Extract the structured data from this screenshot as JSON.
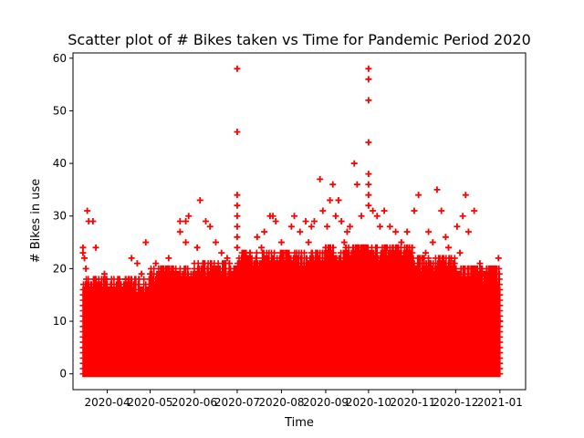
{
  "chart_data": {
    "type": "scatter",
    "title": "Scatter plot of # Bikes taken vs Time for Pandemic Period 2020",
    "xlabel": "Time",
    "ylabel": "# Bikes in use",
    "marker": "+",
    "marker_color": "#ff0000",
    "grid": false,
    "legend": "none",
    "xlim": [
      "2020-03-08",
      "2021-01-19"
    ],
    "ylim": [
      -3,
      61
    ],
    "x_ticks": [
      {
        "value": "2020-04-01",
        "label": "2020-04"
      },
      {
        "value": "2020-05-01",
        "label": "2020-05"
      },
      {
        "value": "2020-06-01",
        "label": "2020-06"
      },
      {
        "value": "2020-07-01",
        "label": "2020-07"
      },
      {
        "value": "2020-08-01",
        "label": "2020-08"
      },
      {
        "value": "2020-09-01",
        "label": "2020-09"
      },
      {
        "value": "2020-10-01",
        "label": "2020-10"
      },
      {
        "value": "2020-11-01",
        "label": "2020-11"
      },
      {
        "value": "2020-12-01",
        "label": "2020-12"
      },
      {
        "value": "2021-01-01",
        "label": "2021-01"
      }
    ],
    "y_ticks": [
      0,
      10,
      20,
      30,
      40,
      50,
      60
    ],
    "x_range": [
      "2020-03-15",
      "2021-01-01"
    ],
    "points": [
      [
        "2020-03-15",
        24
      ],
      [
        "2020-03-15",
        23
      ],
      [
        "2020-03-16",
        22
      ],
      [
        "2020-03-17",
        20
      ],
      [
        "2020-03-18",
        31
      ],
      [
        "2020-03-19",
        29
      ],
      [
        "2020-03-22",
        29
      ],
      [
        "2020-03-24",
        24
      ],
      [
        "2020-03-24",
        18
      ],
      [
        "2020-03-23",
        16
      ],
      [
        "2020-03-30",
        19
      ],
      [
        "2020-03-31",
        18
      ],
      [
        "2020-04-14",
        18
      ],
      [
        "2020-04-18",
        22
      ],
      [
        "2020-04-22",
        21
      ],
      [
        "2020-04-25",
        19
      ],
      [
        "2020-04-28",
        25
      ],
      [
        "2020-05-05",
        21
      ],
      [
        "2020-05-10",
        20
      ],
      [
        "2020-05-14",
        22
      ],
      [
        "2020-05-22",
        29
      ],
      [
        "2020-05-22",
        27
      ],
      [
        "2020-05-26",
        29
      ],
      [
        "2020-05-28",
        30
      ],
      [
        "2020-05-26",
        25
      ],
      [
        "2020-06-03",
        24
      ],
      [
        "2020-06-05",
        33
      ],
      [
        "2020-06-09",
        29
      ],
      [
        "2020-06-12",
        28
      ],
      [
        "2020-06-16",
        25
      ],
      [
        "2020-06-20",
        23
      ],
      [
        "2020-06-24",
        22
      ],
      [
        "2020-07-01",
        58
      ],
      [
        "2020-07-01",
        46
      ],
      [
        "2020-07-01",
        34
      ],
      [
        "2020-07-01",
        32
      ],
      [
        "2020-07-01",
        30
      ],
      [
        "2020-07-01",
        28
      ],
      [
        "2020-07-01",
        26
      ],
      [
        "2020-07-01",
        24
      ],
      [
        "2020-07-04",
        21
      ],
      [
        "2020-07-10",
        23
      ],
      [
        "2020-07-15",
        26
      ],
      [
        "2020-07-20",
        27
      ],
      [
        "2020-07-24",
        30
      ],
      [
        "2020-07-26",
        30
      ],
      [
        "2020-07-28",
        29
      ],
      [
        "2020-08-01",
        25
      ],
      [
        "2020-08-08",
        28
      ],
      [
        "2020-08-10",
        30
      ],
      [
        "2020-08-14",
        27
      ],
      [
        "2020-08-18",
        29
      ],
      [
        "2020-08-22",
        28
      ],
      [
        "2020-08-24",
        29
      ],
      [
        "2020-08-28",
        37
      ],
      [
        "2020-08-30",
        31
      ],
      [
        "2020-09-02",
        28
      ],
      [
        "2020-09-04",
        33
      ],
      [
        "2020-09-06",
        36
      ],
      [
        "2020-09-08",
        30
      ],
      [
        "2020-09-10",
        33
      ],
      [
        "2020-09-12",
        29
      ],
      [
        "2020-09-14",
        25
      ],
      [
        "2020-09-16",
        27
      ],
      [
        "2020-09-18",
        28
      ],
      [
        "2020-09-21",
        40
      ],
      [
        "2020-09-23",
        36
      ],
      [
        "2020-09-26",
        30
      ],
      [
        "2020-10-01",
        58
      ],
      [
        "2020-10-01",
        56
      ],
      [
        "2020-10-01",
        52
      ],
      [
        "2020-10-01",
        44
      ],
      [
        "2020-10-01",
        38
      ],
      [
        "2020-10-01",
        36
      ],
      [
        "2020-10-01",
        34
      ],
      [
        "2020-10-01",
        32
      ],
      [
        "2020-10-04",
        31
      ],
      [
        "2020-10-07",
        30
      ],
      [
        "2020-10-09",
        28
      ],
      [
        "2020-10-12",
        31
      ],
      [
        "2020-10-16",
        28
      ],
      [
        "2020-10-20",
        27
      ],
      [
        "2020-10-24",
        25
      ],
      [
        "2020-10-28",
        27
      ],
      [
        "2020-11-02",
        31
      ],
      [
        "2020-11-05",
        34
      ],
      [
        "2020-11-08",
        22
      ],
      [
        "2020-11-12",
        27
      ],
      [
        "2020-11-15",
        25
      ],
      [
        "2020-11-18",
        35
      ],
      [
        "2020-11-21",
        31
      ],
      [
        "2020-11-24",
        26
      ],
      [
        "2020-11-28",
        22
      ],
      [
        "2020-12-02",
        28
      ],
      [
        "2020-12-06",
        30
      ],
      [
        "2020-12-08",
        34
      ],
      [
        "2020-12-10",
        27
      ],
      [
        "2020-12-14",
        31
      ],
      [
        "2020-12-18",
        21
      ],
      [
        "2020-12-22",
        17
      ],
      [
        "2020-12-26",
        15
      ],
      [
        "2020-12-30",
        11
      ],
      [
        "2020-12-31",
        22
      ],
      [
        "2021-01-01",
        10
      ],
      [
        "2020-04-05",
        15
      ],
      [
        "2020-04-10",
        14
      ],
      [
        "2020-05-02",
        17
      ],
      [
        "2020-05-18",
        19
      ],
      [
        "2020-06-07",
        21
      ],
      [
        "2020-06-22",
        20
      ],
      [
        "2020-07-08",
        22
      ],
      [
        "2020-07-18",
        24
      ],
      [
        "2020-08-04",
        23
      ],
      [
        "2020-08-20",
        25
      ],
      [
        "2020-09-01",
        24
      ],
      [
        "2020-10-14",
        24
      ],
      [
        "2020-10-30",
        22
      ],
      [
        "2020-11-10",
        23
      ],
      [
        "2020-11-26",
        24
      ],
      [
        "2020-12-04",
        23
      ],
      [
        "2020-12-20",
        19
      ],
      [
        "2020-12-27",
        13
      ]
    ],
    "dense_band": {
      "description": "",
      "min": 0,
      "max_by_month": {
        "2020-03": 15,
        "2020-04": 15,
        "2020-05": 17,
        "2020-06": 18,
        "2020-07": 20,
        "2020-08": 20,
        "2020-09": 21,
        "2020-10": 21,
        "2020-11": 19,
        "2020-12": 17
      }
    }
  }
}
